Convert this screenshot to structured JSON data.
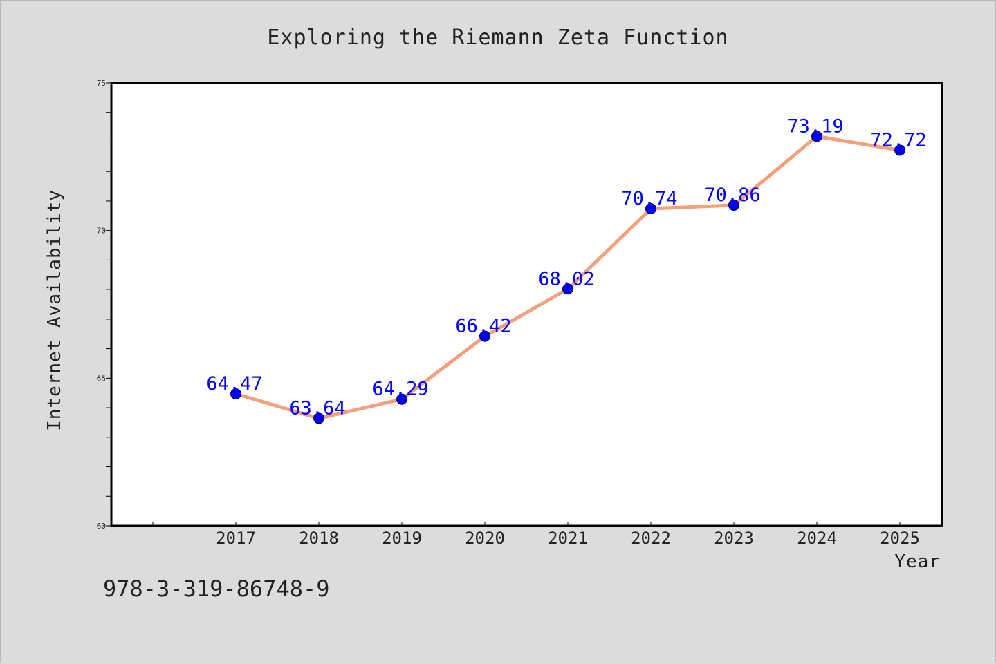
{
  "chart_data": {
    "type": "line",
    "title": "Exploring the Riemann Zeta Function",
    "xlabel": "Year",
    "ylabel": "Internet Availability",
    "categories": [
      "2017",
      "2018",
      "2019",
      "2020",
      "2021",
      "2022",
      "2023",
      "2024",
      "2025"
    ],
    "series": [
      {
        "values": [
          64.47,
          63.64,
          64.29,
          66.42,
          68.02,
          70.74,
          70.86,
          73.19,
          72.72
        ],
        "data_labels": [
          "64.47",
          "63.64",
          "64.29",
          "66.42",
          "68.02",
          "70.74",
          "70.86",
          "73.19",
          "72.72"
        ]
      }
    ],
    "ylim": [
      60,
      75
    ],
    "yticks": [
      "60",
      "65",
      "70",
      "75"
    ],
    "grid": false,
    "legend": "none",
    "colors": {
      "line": "#f4a07e",
      "marker": "#0000ff",
      "data_label": "#0000ff",
      "plot_background": "#ffffff",
      "figure_background": "#dcdcdc"
    }
  },
  "footer": {
    "isbn": "978-3-319-86748-9"
  }
}
